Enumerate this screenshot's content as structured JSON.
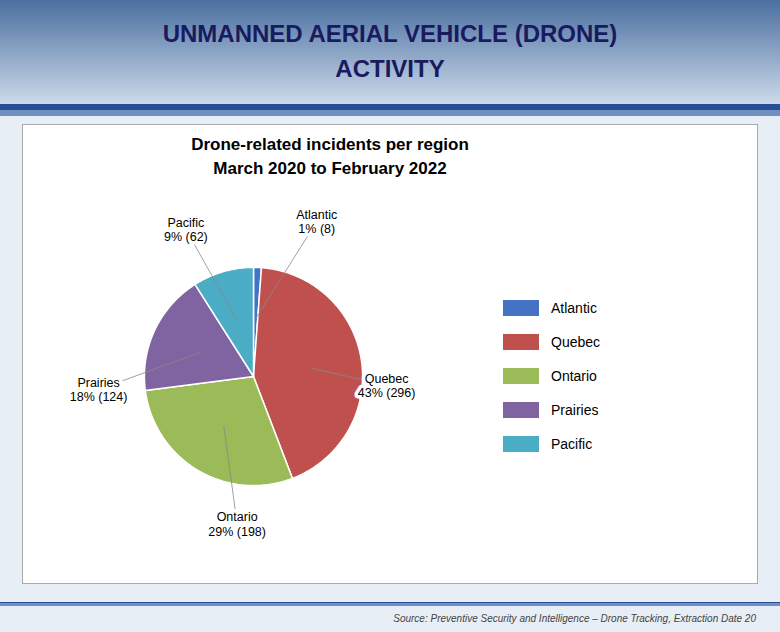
{
  "chart_data": {
    "type": "pie",
    "title": "UNMANNED AERIAL VEHICLE (DRONE)\nACTIVITY",
    "subtitle": "Drone-related incidents per region\nMarch 2020 to February 2022",
    "caption": "Source: Preventive Security and Intelligence – Drone Tracking, Extraction Date 20",
    "categories": [
      "Atlantic",
      "Quebec",
      "Ontario",
      "Prairies",
      "Pacific"
    ],
    "values": [
      8,
      296,
      198,
      124,
      62
    ],
    "value_labels": [
      "1% (8)",
      "43% (296)",
      "29% (198)",
      "18% (124)",
      "9% (62)"
    ],
    "colors": [
      "#4472C4",
      "#C0504D",
      "#9BBB59",
      "#8064A2",
      "#4BACC6"
    ],
    "data_labels": true,
    "legend": "right"
  }
}
